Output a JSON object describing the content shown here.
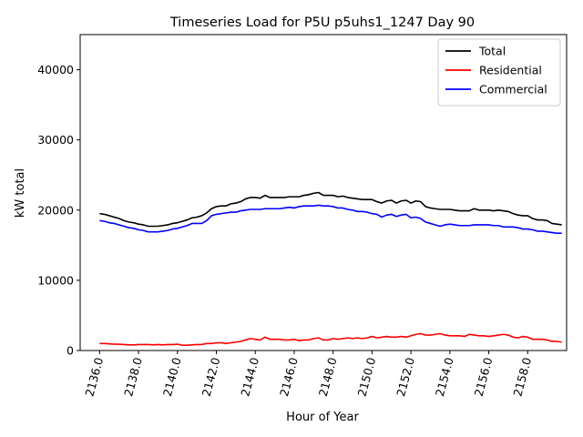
{
  "chart_data": {
    "type": "line",
    "title": "Timeseries Load for P5U p5uhs1_1247  Day 90",
    "xlabel": "Hour of Year",
    "ylabel": "kW total",
    "xlim": [
      2135.0,
      2160.0
    ],
    "ylim": [
      0,
      45000
    ],
    "xticks": [
      2136,
      2138,
      2140,
      2142,
      2144,
      2146,
      2148,
      2150,
      2152,
      2154,
      2156,
      2158
    ],
    "xtick_labels": [
      "2136.0",
      "2138.0",
      "2140.0",
      "2142.0",
      "2144.0",
      "2146.0",
      "2148.0",
      "2150.0",
      "2152.0",
      "2154.0",
      "2156.0",
      "2158.0"
    ],
    "yticks": [
      0,
      10000,
      20000,
      30000,
      40000
    ],
    "ytick_labels": [
      "0",
      "10000",
      "20000",
      "30000",
      "40000"
    ],
    "legend_position": "top-right",
    "grid": false,
    "x": [
      2136.0,
      2136.25,
      2136.5,
      2136.75,
      2137.0,
      2137.25,
      2137.5,
      2137.75,
      2138.0,
      2138.25,
      2138.5,
      2138.75,
      2139.0,
      2139.25,
      2139.5,
      2139.75,
      2140.0,
      2140.25,
      2140.5,
      2140.75,
      2141.0,
      2141.25,
      2141.5,
      2141.75,
      2142.0,
      2142.25,
      2142.5,
      2142.75,
      2143.0,
      2143.25,
      2143.5,
      2143.75,
      2144.0,
      2144.25,
      2144.5,
      2144.75,
      2145.0,
      2145.25,
      2145.5,
      2145.75,
      2146.0,
      2146.25,
      2146.5,
      2146.75,
      2147.0,
      2147.25,
      2147.5,
      2147.75,
      2148.0,
      2148.25,
      2148.5,
      2148.75,
      2149.0,
      2149.25,
      2149.5,
      2149.75,
      2150.0,
      2150.25,
      2150.5,
      2150.75,
      2151.0,
      2151.25,
      2151.5,
      2151.75,
      2152.0,
      2152.25,
      2152.5,
      2152.75,
      2153.0,
      2153.25,
      2153.5,
      2153.75,
      2154.0,
      2154.25,
      2154.5,
      2154.75,
      2155.0,
      2155.25,
      2155.5,
      2155.75,
      2156.0,
      2156.25,
      2156.5,
      2156.75,
      2157.0,
      2157.25,
      2157.5,
      2157.75,
      2158.0,
      2158.25,
      2158.5,
      2158.75,
      2159.0,
      2159.25,
      2159.5,
      2159.75
    ],
    "series": [
      {
        "name": "Total",
        "color": "#000000",
        "values": [
          19500,
          19400,
          19200,
          19000,
          18800,
          18500,
          18300,
          18200,
          18000,
          17900,
          17700,
          17700,
          17700,
          17800,
          17900,
          18100,
          18200,
          18400,
          18600,
          18900,
          19000,
          19200,
          19600,
          20200,
          20500,
          20600,
          20600,
          20900,
          21000,
          21200,
          21600,
          21800,
          21800,
          21700,
          22100,
          21800,
          21800,
          21800,
          21800,
          21900,
          21900,
          21900,
          22100,
          22200,
          22400,
          22500,
          22100,
          22100,
          22100,
          21900,
          22000,
          21800,
          21700,
          21600,
          21500,
          21500,
          21500,
          21200,
          21000,
          21300,
          21400,
          21000,
          21300,
          21400,
          21000,
          21300,
          21200,
          20500,
          20300,
          20200,
          20100,
          20100,
          20100,
          20000,
          19900,
          19900,
          19900,
          20200,
          20000,
          20000,
          20000,
          19900,
          20000,
          19900,
          19800,
          19500,
          19300,
          19200,
          19200,
          18800,
          18600,
          18600,
          18500,
          18100,
          18000,
          17900
        ]
      },
      {
        "name": "Residential",
        "color": "#ff0000",
        "values": [
          1000,
          1000,
          950,
          900,
          900,
          850,
          800,
          800,
          850,
          850,
          850,
          800,
          850,
          800,
          850,
          850,
          900,
          750,
          750,
          800,
          850,
          850,
          1000,
          1000,
          1100,
          1100,
          1000,
          1100,
          1200,
          1300,
          1500,
          1700,
          1600,
          1500,
          1900,
          1600,
          1600,
          1600,
          1500,
          1500,
          1600,
          1400,
          1500,
          1500,
          1700,
          1800,
          1500,
          1500,
          1700,
          1600,
          1700,
          1800,
          1700,
          1800,
          1700,
          1800,
          2000,
          1800,
          1900,
          2000,
          1900,
          1900,
          2000,
          1900,
          2100,
          2300,
          2400,
          2200,
          2200,
          2300,
          2400,
          2200,
          2100,
          2100,
          2100,
          2000,
          2300,
          2200,
          2100,
          2100,
          2000,
          2100,
          2200,
          2300,
          2200,
          1900,
          1800,
          2000,
          1900,
          1600,
          1600,
          1600,
          1500,
          1300,
          1300,
          1200
        ]
      },
      {
        "name": "Commercial",
        "color": "#0000ff",
        "values": [
          18500,
          18400,
          18200,
          18100,
          17900,
          17700,
          17500,
          17400,
          17200,
          17100,
          16900,
          16900,
          16900,
          17000,
          17100,
          17300,
          17400,
          17600,
          17800,
          18100,
          18100,
          18100,
          18500,
          19200,
          19400,
          19500,
          19600,
          19700,
          19700,
          19900,
          20000,
          20100,
          20100,
          20100,
          20200,
          20200,
          20200,
          20200,
          20300,
          20400,
          20300,
          20500,
          20600,
          20600,
          20600,
          20700,
          20600,
          20600,
          20500,
          20300,
          20300,
          20100,
          20000,
          19800,
          19800,
          19700,
          19500,
          19400,
          19000,
          19300,
          19400,
          19100,
          19300,
          19400,
          18900,
          19000,
          18800,
          18300,
          18100,
          17900,
          17700,
          17900,
          18000,
          17900,
          17800,
          17800,
          17800,
          17900,
          17900,
          17900,
          17900,
          17800,
          17800,
          17600,
          17600,
          17600,
          17500,
          17300,
          17300,
          17200,
          17000,
          17000,
          16900,
          16800,
          16700,
          16700
        ]
      }
    ]
  }
}
